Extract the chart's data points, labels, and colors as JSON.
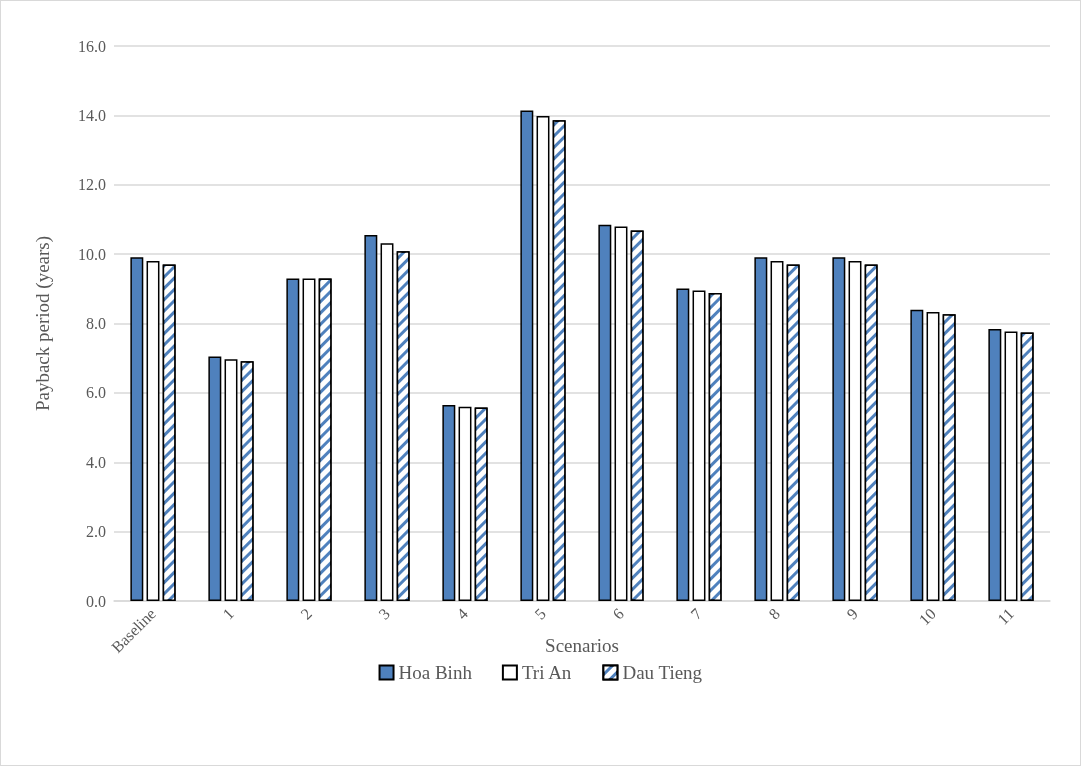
{
  "chart_data": {
    "type": "bar",
    "xlabel": "Scenarios",
    "ylabel": "Payback period (years)",
    "categories": [
      "Baseline",
      "1",
      "2",
      "3",
      "4",
      "5",
      "6",
      "7",
      "8",
      "9",
      "10",
      "11"
    ],
    "series": [
      {
        "name": "Hoa Binh",
        "color": "#4f81bd",
        "values": [
          9.91,
          7.05,
          9.3,
          10.55,
          5.65,
          14.14,
          10.85,
          9.01,
          9.91,
          9.91,
          8.4,
          7.84
        ]
      },
      {
        "name": "Tri An",
        "color": "#ffffff",
        "values": [
          9.8,
          6.97,
          9.3,
          10.31,
          5.6,
          13.98,
          10.8,
          8.95,
          9.8,
          9.8,
          8.33,
          7.77
        ]
      },
      {
        "name": "Dau Tieng",
        "color": "#4f81bd",
        "values": [
          9.7,
          6.91,
          9.3,
          10.08,
          5.58,
          13.86,
          10.68,
          8.88,
          9.7,
          9.7,
          8.27,
          7.74
        ]
      }
    ],
    "ylim": [
      0,
      16
    ],
    "yticks": [
      {
        "value": 0,
        "label": "0.0"
      },
      {
        "value": 2,
        "label": "2.0"
      },
      {
        "value": 4,
        "label": "4.0"
      },
      {
        "value": 6,
        "label": "6.0"
      },
      {
        "value": 8,
        "label": "8.0"
      },
      {
        "value": 10,
        "label": "10.0"
      },
      {
        "value": 12,
        "label": "12.0"
      },
      {
        "value": 14,
        "label": "14.0"
      },
      {
        "value": 16,
        "label": "16.0"
      }
    ],
    "grid": "y",
    "legend": "bottom"
  }
}
